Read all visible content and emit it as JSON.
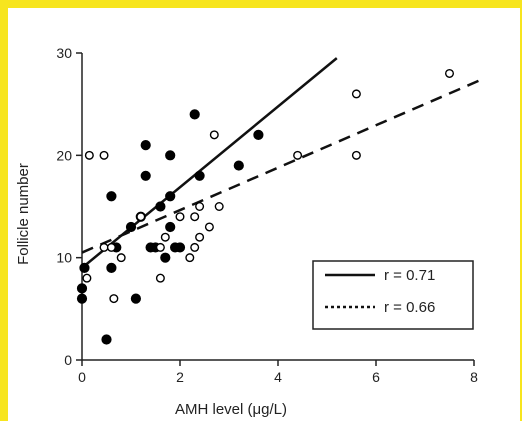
{
  "chart_data": {
    "type": "scatter",
    "xlabel": "AMH level (μg/L)",
    "ylabel": "Follicle number",
    "xlim": [
      0,
      8
    ],
    "ylim": [
      0,
      30
    ],
    "xticks": [
      0,
      2,
      4,
      6,
      8
    ],
    "yticks": [
      0,
      10,
      20,
      30
    ],
    "grid": false,
    "legend_position": "bottom-right",
    "series": [
      {
        "name": "r = 0.71",
        "marker": "filled-circle",
        "line_style": "solid",
        "points": [
          [
            0,
            6
          ],
          [
            0,
            7
          ],
          [
            0.05,
            9
          ],
          [
            0.5,
            2
          ],
          [
            0.6,
            16
          ],
          [
            0.6,
            9
          ],
          [
            0.7,
            11
          ],
          [
            1.0,
            13
          ],
          [
            1.1,
            6
          ],
          [
            1.2,
            14
          ],
          [
            1.3,
            21
          ],
          [
            1.3,
            18
          ],
          [
            1.4,
            11
          ],
          [
            1.5,
            11
          ],
          [
            1.6,
            15
          ],
          [
            1.7,
            10
          ],
          [
            1.8,
            16
          ],
          [
            1.8,
            13
          ],
          [
            1.8,
            20
          ],
          [
            1.9,
            11
          ],
          [
            2.0,
            11
          ],
          [
            2.3,
            24
          ],
          [
            2.4,
            18
          ],
          [
            3.2,
            19
          ],
          [
            3.6,
            22
          ]
        ],
        "fit": {
          "from": [
            0,
            9
          ],
          "to": [
            5.2,
            29.5
          ]
        }
      },
      {
        "name": "r = 0.66",
        "marker": "open-circle",
        "line_style": "dashed",
        "points": [
          [
            0.1,
            8
          ],
          [
            0.15,
            20
          ],
          [
            0.45,
            20
          ],
          [
            0.45,
            11
          ],
          [
            0.6,
            11
          ],
          [
            0.65,
            6
          ],
          [
            0.8,
            10
          ],
          [
            1.2,
            14
          ],
          [
            1.6,
            11
          ],
          [
            1.6,
            8
          ],
          [
            1.7,
            12
          ],
          [
            2.0,
            14
          ],
          [
            2.2,
            10
          ],
          [
            2.3,
            11
          ],
          [
            2.3,
            14
          ],
          [
            2.4,
            12
          ],
          [
            2.4,
            15
          ],
          [
            2.6,
            13
          ],
          [
            2.7,
            22
          ],
          [
            2.8,
            15
          ],
          [
            4.4,
            20
          ],
          [
            5.6,
            26
          ],
          [
            5.6,
            20
          ],
          [
            7.5,
            28
          ]
        ],
        "fit": {
          "from": [
            0,
            10.5
          ],
          "to": [
            8.2,
            27.5
          ]
        }
      }
    ]
  }
}
